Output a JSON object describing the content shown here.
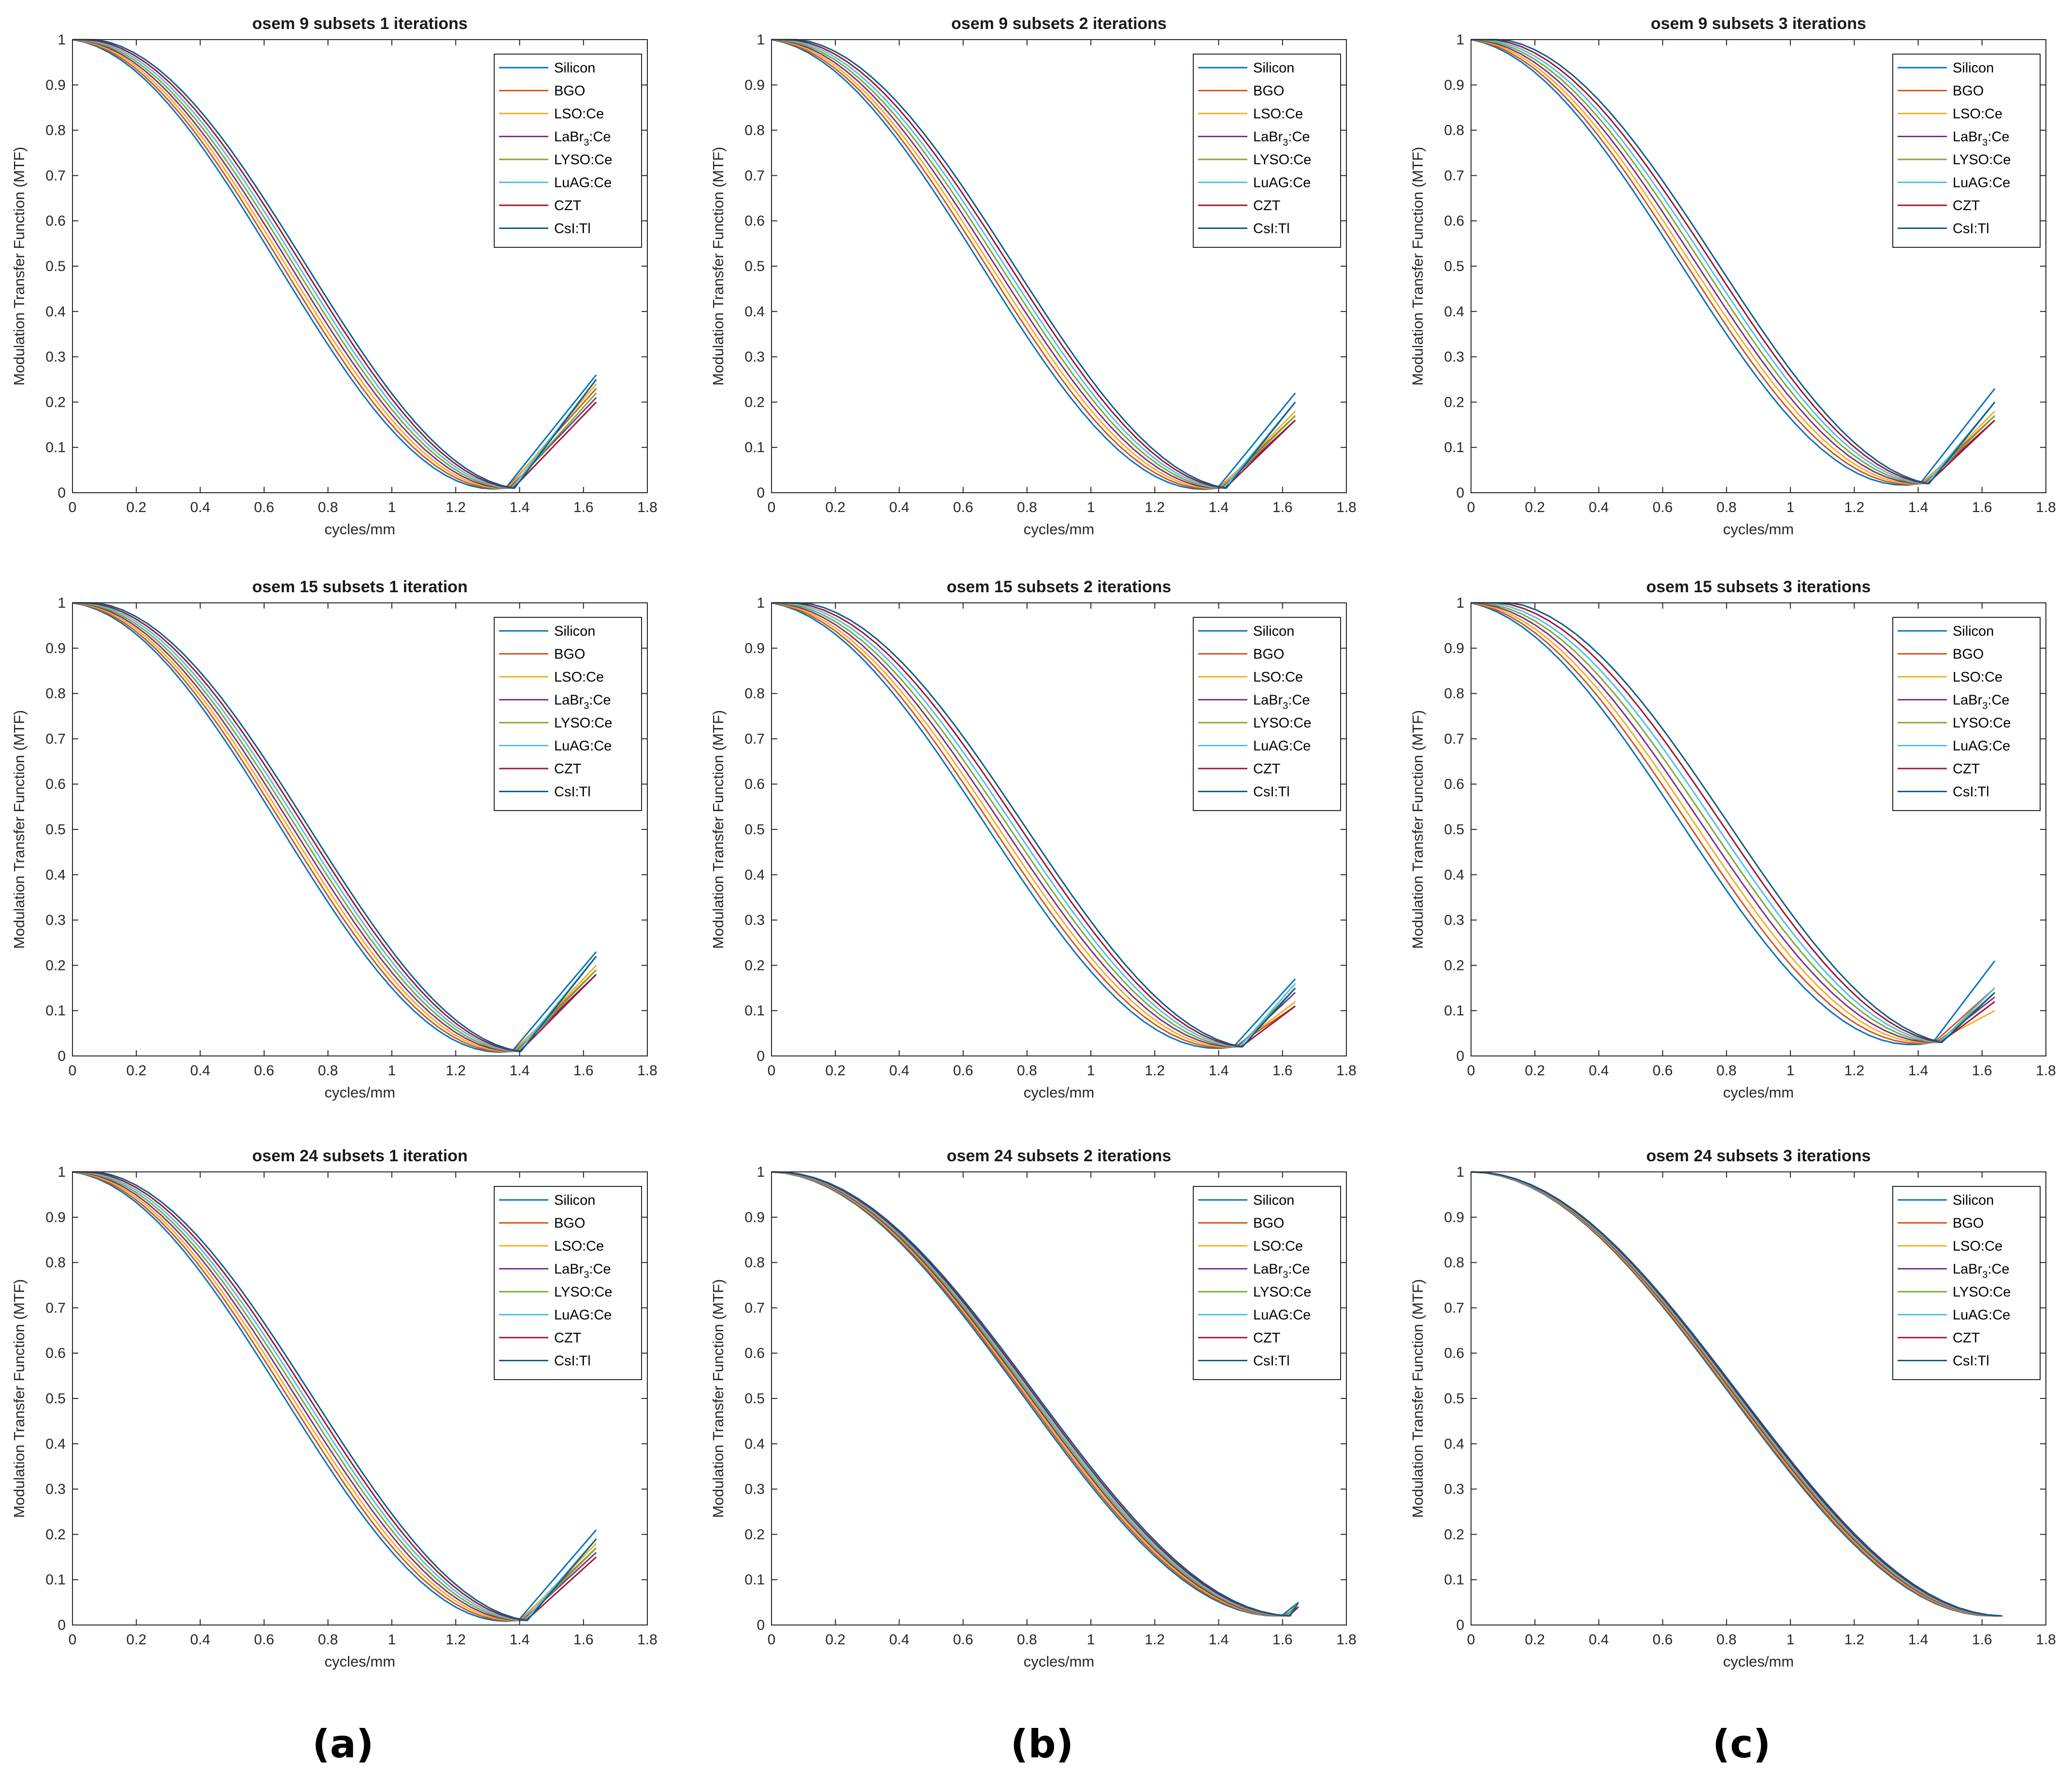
{
  "panel_labels": [
    "(a)",
    "(b)",
    "(c)"
  ],
  "colors": {
    "Silicon": "#0072BD",
    "BGO": "#D95319",
    "LSO:Ce": "#EDB120",
    "LaBr3:Ce": "#7E2F8E",
    "LYSO:Ce": "#77AC30",
    "LuAG:Ce": "#4DBEEE",
    "CZT": "#A2142F",
    "CsI:Tl": "#0E5A8A"
  },
  "legend": [
    {
      "id": "Silicon",
      "text": "Silicon"
    },
    {
      "id": "BGO",
      "text": "BGO"
    },
    {
      "id": "LSO:Ce",
      "text": "LSO:Ce"
    },
    {
      "id": "LaBr3:Ce",
      "pre": "LaBr",
      "sub": "3",
      "post": ":Ce"
    },
    {
      "id": "LYSO:Ce",
      "text": "LYSO:Ce"
    },
    {
      "id": "LuAG:Ce",
      "text": "LuAG:Ce"
    },
    {
      "id": "CZT",
      "text": "CZT"
    },
    {
      "id": "CsI:Tl",
      "text": "CsI:Tl"
    }
  ],
  "chart_data": [
    {
      "type": "line",
      "title": "osem 9 subsets 1 iterations",
      "xlabel": "cycles/mm",
      "ylabel": "Modulation Transfer Function (MTF)",
      "xlim": [
        0,
        1.8
      ],
      "ylim": [
        0,
        1
      ],
      "xticks": [
        "0",
        "0.2",
        "0.4",
        "0.6",
        "0.8",
        "1",
        "1.2",
        "1.4",
        "1.6",
        "1.8"
      ],
      "yticks": [
        "0",
        "0.1",
        "0.2",
        "0.3",
        "0.4",
        "0.5",
        "0.6",
        "0.7",
        "0.8",
        "0.9",
        "1"
      ],
      "legend_position": "top-right",
      "dip_x": 1.37,
      "min_value": 0.01,
      "end_x": 1.64,
      "end_values": [
        0.26,
        0.23,
        0.24,
        0.21,
        0.22,
        0.25,
        0.2,
        0.25
      ],
      "spread": 0.012
    },
    {
      "type": "line",
      "title": "osem 9 subsets 2 iterations",
      "xlabel": "cycles/mm",
      "ylabel": "Modulation Transfer Function (MTF)",
      "xlim": [
        0,
        1.8
      ],
      "ylim": [
        0,
        1
      ],
      "xticks": [
        "0",
        "0.2",
        "0.4",
        "0.6",
        "0.8",
        "1",
        "1.2",
        "1.4",
        "1.6",
        "1.8"
      ],
      "yticks": [
        "0",
        "0.1",
        "0.2",
        "0.3",
        "0.4",
        "0.5",
        "0.6",
        "0.7",
        "0.8",
        "0.9",
        "1"
      ],
      "legend_position": "top-right",
      "dip_x": 1.41,
      "min_value": 0.01,
      "end_x": 1.64,
      "end_values": [
        0.22,
        0.17,
        0.18,
        0.16,
        0.17,
        0.2,
        0.16,
        0.2
      ],
      "spread": 0.014
    },
    {
      "type": "line",
      "title": "osem 9 subsets 3 iterations",
      "xlabel": "cycles/mm",
      "ylabel": "Modulation Transfer Function (MTF)",
      "xlim": [
        0,
        1.8
      ],
      "ylim": [
        0,
        1
      ],
      "xticks": [
        "0",
        "0.2",
        "0.4",
        "0.6",
        "0.8",
        "1",
        "1.2",
        "1.4",
        "1.6",
        "1.8"
      ],
      "yticks": [
        "0",
        "0.1",
        "0.2",
        "0.3",
        "0.4",
        "0.5",
        "0.6",
        "0.7",
        "0.8",
        "0.9",
        "1"
      ],
      "legend_position": "top-right",
      "dip_x": 1.42,
      "min_value": 0.02,
      "end_x": 1.64,
      "end_values": [
        0.23,
        0.17,
        0.18,
        0.16,
        0.17,
        0.2,
        0.16,
        0.2
      ],
      "spread": 0.016
    },
    {
      "type": "line",
      "title": "osem 15 subsets 1 iteration",
      "xlabel": "cycles/mm",
      "ylabel": "Modulation Transfer Function (MTF)",
      "xlim": [
        0,
        1.8
      ],
      "ylim": [
        0,
        1
      ],
      "xticks": [
        "0",
        "0.2",
        "0.4",
        "0.6",
        "0.8",
        "1",
        "1.2",
        "1.4",
        "1.6",
        "1.8"
      ],
      "yticks": [
        "0",
        "0.1",
        "0.2",
        "0.3",
        "0.4",
        "0.5",
        "0.6",
        "0.7",
        "0.8",
        "0.9",
        "1"
      ],
      "legend_position": "top-right",
      "dip_x": 1.39,
      "min_value": 0.01,
      "end_x": 1.64,
      "end_values": [
        0.23,
        0.19,
        0.2,
        0.18,
        0.19,
        0.22,
        0.18,
        0.22
      ],
      "spread": 0.012
    },
    {
      "type": "line",
      "title": "osem 15 subsets 2 iterations",
      "xlabel": "cycles/mm",
      "ylabel": "Modulation Transfer Function (MTF)",
      "xlim": [
        0,
        1.8
      ],
      "ylim": [
        0,
        1
      ],
      "xticks": [
        "0",
        "0.2",
        "0.4",
        "0.6",
        "0.8",
        "1",
        "1.2",
        "1.4",
        "1.6",
        "1.8"
      ],
      "yticks": [
        "0",
        "0.1",
        "0.2",
        "0.3",
        "0.4",
        "0.5",
        "0.6",
        "0.7",
        "0.8",
        "0.9",
        "1"
      ],
      "legend_position": "top-right",
      "dip_x": 1.46,
      "min_value": 0.02,
      "end_x": 1.64,
      "end_values": [
        0.17,
        0.11,
        0.12,
        0.14,
        0.15,
        0.16,
        0.11,
        0.15
      ],
      "spread": 0.016
    },
    {
      "type": "line",
      "title": "osem 15 subsets 3 iterations",
      "xlabel": "cycles/mm",
      "ylabel": "Modulation Transfer Function (MTF)",
      "xlim": [
        0,
        1.8
      ],
      "ylim": [
        0,
        1
      ],
      "xticks": [
        "0",
        "0.2",
        "0.4",
        "0.6",
        "0.8",
        "1",
        "1.2",
        "1.4",
        "1.6",
        "1.8"
      ],
      "yticks": [
        "0",
        "0.1",
        "0.2",
        "0.3",
        "0.4",
        "0.5",
        "0.6",
        "0.7",
        "0.8",
        "0.9",
        "1"
      ],
      "legend_position": "top-right",
      "dip_x": 1.46,
      "min_value": 0.03,
      "end_x": 1.64,
      "end_values": [
        0.21,
        0.15,
        0.1,
        0.13,
        0.14,
        0.15,
        0.12,
        0.14
      ],
      "spread": 0.02
    },
    {
      "type": "line",
      "title": "osem 24 subsets 1 iteration",
      "xlabel": "cycles/mm",
      "ylabel": "Modulation Transfer Function (MTF)",
      "xlim": [
        0,
        1.8
      ],
      "ylim": [
        0,
        1
      ],
      "xticks": [
        "0",
        "0.2",
        "0.4",
        "0.6",
        "0.8",
        "1",
        "1.2",
        "1.4",
        "1.6",
        "1.8"
      ],
      "yticks": [
        "0",
        "0.1",
        "0.2",
        "0.3",
        "0.4",
        "0.5",
        "0.6",
        "0.7",
        "0.8",
        "0.9",
        "1"
      ],
      "legend_position": "top-right",
      "dip_x": 1.41,
      "min_value": 0.01,
      "end_x": 1.64,
      "end_values": [
        0.21,
        0.17,
        0.18,
        0.16,
        0.17,
        0.19,
        0.15,
        0.19
      ],
      "spread": 0.012
    },
    {
      "type": "line",
      "title": "osem 24 subsets 2 iterations",
      "xlabel": "cycles/mm",
      "ylabel": "Modulation Transfer Function (MTF)",
      "xlim": [
        0,
        1.8
      ],
      "ylim": [
        0,
        1
      ],
      "xticks": [
        "0",
        "0.2",
        "0.4",
        "0.6",
        "0.8",
        "1",
        "1.2",
        "1.4",
        "1.6",
        "1.8"
      ],
      "yticks": [
        "0",
        "0.1",
        "0.2",
        "0.3",
        "0.4",
        "0.5",
        "0.6",
        "0.7",
        "0.8",
        "0.9",
        "1"
      ],
      "legend_position": "top-right",
      "dip_x": 1.61,
      "min_value": 0.02,
      "end_x": 1.65,
      "end_values": [
        0.05,
        0.04,
        0.04,
        0.04,
        0.05,
        0.04,
        0.04,
        0.05
      ],
      "spread": 0.004
    },
    {
      "type": "line",
      "title": "osem 24 subsets 3 iterations",
      "xlabel": "cycles/mm",
      "ylabel": "Modulation Transfer Function (MTF)",
      "xlim": [
        0,
        1.8
      ],
      "ylim": [
        0,
        1
      ],
      "xticks": [
        "0",
        "0.2",
        "0.4",
        "0.6",
        "0.8",
        "1",
        "1.2",
        "1.4",
        "1.6",
        "1.8"
      ],
      "yticks": [
        "0",
        "0.1",
        "0.2",
        "0.3",
        "0.4",
        "0.5",
        "0.6",
        "0.7",
        "0.8",
        "0.9",
        "1"
      ],
      "legend_position": "top-right",
      "dip_x": 1.65,
      "min_value": 0.02,
      "end_x": 1.65,
      "end_values": [
        0.02,
        0.02,
        0.02,
        0.02,
        0.02,
        0.02,
        0.02,
        0.02
      ],
      "spread": 0.002
    }
  ]
}
